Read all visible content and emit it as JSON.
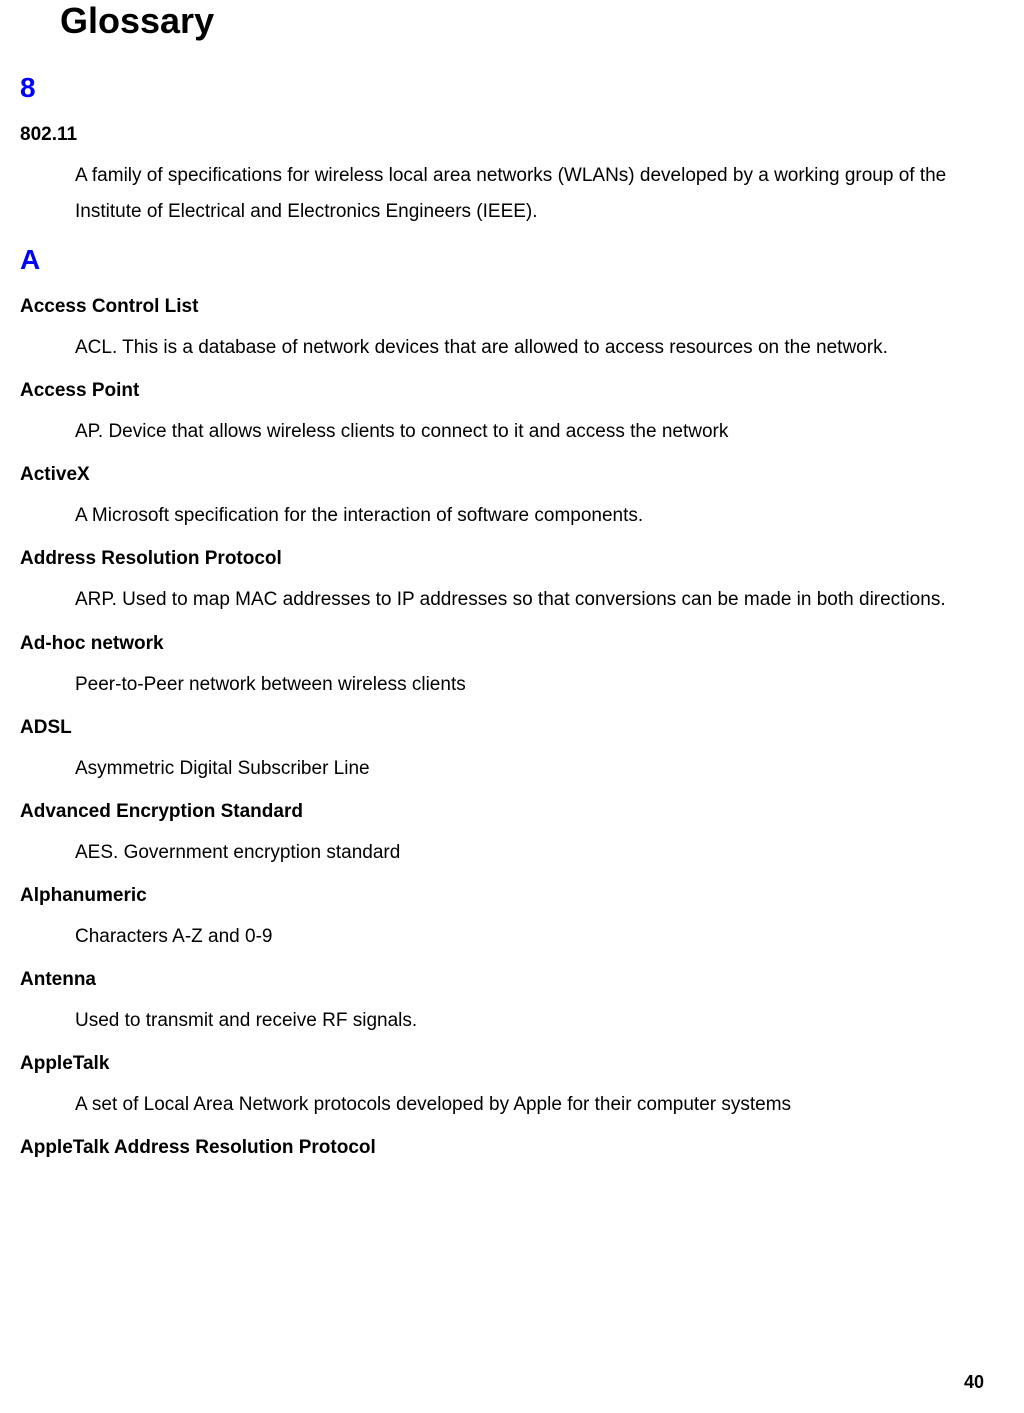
{
  "title": "Glossary",
  "page_number": "40",
  "section_color": "#0000ff",
  "text_color": "#000000",
  "background_color": "#ffffff",
  "sections": [
    {
      "letter": "8",
      "entries": [
        {
          "term": "802.11",
          "definition": "A family of specifications for wireless local area networks (WLANs) developed by a working group of the Institute of Electrical and Electronics Engineers (IEEE)."
        }
      ]
    },
    {
      "letter": "A",
      "entries": [
        {
          "term": "Access Control List",
          "definition": "ACL. This is a database of network devices that are allowed to access resources on the network."
        },
        {
          "term": "Access Point",
          "definition": "AP. Device that allows wireless clients to connect to it and access the network"
        },
        {
          "term": "ActiveX",
          "definition": "A Microsoft specification for the interaction of software components."
        },
        {
          "term": "Address Resolution Protocol",
          "definition": "ARP. Used to map MAC addresses to IP addresses so that conversions can be made in both directions."
        },
        {
          "term": "Ad-hoc network",
          "definition": "Peer-to-Peer network between wireless clients"
        },
        {
          "term": "ADSL",
          "definition": "Asymmetric Digital Subscriber Line"
        },
        {
          "term": "Advanced Encryption Standard",
          "definition": "AES. Government encryption standard"
        },
        {
          "term": "Alphanumeric",
          "definition": "Characters A-Z and 0-9"
        },
        {
          "term": "Antenna",
          "definition": "Used to transmit and receive RF signals."
        },
        {
          "term": "AppleTalk",
          "definition": "A set of Local Area Network protocols developed by Apple for their computer systems"
        },
        {
          "term": "AppleTalk Address Resolution Protocol",
          "definition": ""
        }
      ]
    }
  ]
}
